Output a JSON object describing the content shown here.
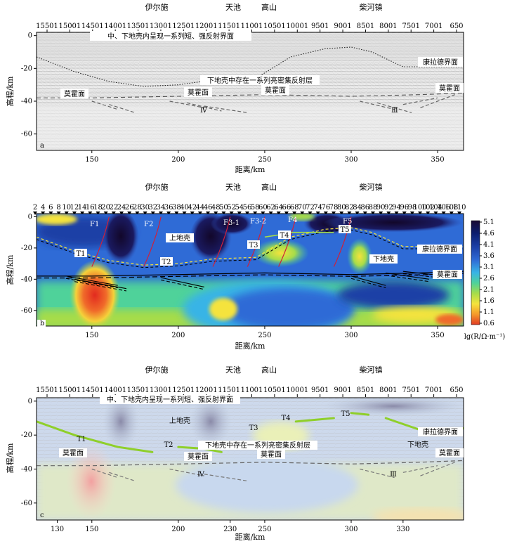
{
  "figure": {
    "places": [
      "伊尔施",
      "天池",
      "高山",
      "柴河镇"
    ],
    "x_axis_label": "距离/km",
    "y_axis_label": "高程/km",
    "colorbar_label": "lg(R/Ω·m⁻¹)",
    "colorbar_ticks": [
      "5.1",
      "4.6",
      "4.1",
      "3.6",
      "3.1",
      "2.6",
      "2.1",
      "1.6",
      "1.1",
      "0.6"
    ],
    "colorbar_colors": [
      "#1a0a33",
      "#0b1d6e",
      "#1b3fa6",
      "#2f6bd6",
      "#38b4e6",
      "#4fd29a",
      "#a6dc4a",
      "#f5e33c",
      "#f59a2a",
      "#e03a24"
    ]
  },
  "panel_a": {
    "tag": "a",
    "cdp_ticks": [
      "15501",
      "15001",
      "14501",
      "14001",
      "13501",
      "13001",
      "12501",
      "12001",
      "11501",
      "11001",
      "10501",
      "10001",
      "9501",
      "9001",
      "8501",
      "8001",
      "7501",
      "7001",
      "650"
    ],
    "x_ticks": [
      "150",
      "200",
      "250",
      "300",
      "350"
    ],
    "y_ticks": [
      "0",
      "-20",
      "-40",
      "-60"
    ],
    "annotations": {
      "top_note": "中、下地壳内呈现一系列短、强反射界面",
      "conrad": "康拉德界面",
      "lower_crust_note": "下地壳中存在一系列亮密集反射层",
      "moho_left": "莫霍面",
      "moho_mid1": "莫霍面",
      "moho_mid2": "莫霍面",
      "moho_right": "莫霍面",
      "roman_iv": "Ⅳ",
      "roman_iii": "Ⅲ"
    }
  },
  "panel_b": {
    "tag": "b",
    "station_ticks": [
      "2",
      "4",
      "6",
      "8",
      "10",
      "12",
      "14",
      "16",
      "18",
      "20",
      "22",
      "24",
      "26",
      "28",
      "30",
      "32",
      "34",
      "36",
      "38",
      "40",
      "42",
      "44",
      "46",
      "48",
      "50",
      "52",
      "54",
      "56",
      "58",
      "60",
      "62",
      "64",
      "66",
      "68",
      "70",
      "72",
      "74",
      "76",
      "78",
      "80",
      "82",
      "84",
      "86",
      "88",
      "90",
      "92",
      "94",
      "96",
      "98",
      "100",
      "102",
      "104",
      "106",
      "108",
      "110"
    ],
    "x_ticks": [
      "150",
      "200",
      "250",
      "300",
      "350"
    ],
    "y_ticks": [
      "0",
      "-20",
      "-40",
      "-60"
    ],
    "faults": [
      "F1",
      "F2",
      "F3-1",
      "F3-2",
      "F4",
      "F5"
    ],
    "reflectors": [
      "T1",
      "T2",
      "T3",
      "T4",
      "T5"
    ],
    "annotations": {
      "upper_crust": "上地壳",
      "lower_crust": "下地壳",
      "conrad": "康拉德界面",
      "moho": "莫霍面"
    }
  },
  "panel_c": {
    "tag": "c",
    "cdp_ticks": [
      "15501",
      "15001",
      "14501",
      "14001",
      "13501",
      "13001",
      "12501",
      "12001",
      "11501",
      "11001",
      "10501",
      "10001",
      "9501",
      "9001",
      "8501",
      "8001",
      "7501",
      "7001",
      "650"
    ],
    "x_ticks": [
      "130",
      "150",
      "200",
      "230",
      "250",
      "300",
      "330"
    ],
    "y_ticks": [
      "0",
      "-20",
      "-40",
      "-60"
    ],
    "annotations": {
      "top_note": "中、下地壳内呈现一系列短、强反射界面",
      "upper_crust": "上地壳",
      "lower_crust": "下地壳",
      "conrad": "康拉德界面",
      "lower_crust_note": "下地壳中存在一系列亮密集反射层",
      "moho_left": "莫霍面",
      "moho_mid1": "莫霍面",
      "moho_mid2": "莫霍面",
      "moho_right": "莫霍面",
      "roman_iv": "Ⅳ",
      "roman_iii": "Ⅲ",
      "t1": "T1",
      "t2": "T2",
      "t3": "T3",
      "t4": "T4",
      "t5": "T5"
    }
  },
  "chart_data": [
    {
      "type": "line",
      "panel": "a",
      "xlabel": "距离/km",
      "ylabel": "高程/km",
      "xlim": [
        118,
        365
      ],
      "ylim": [
        -70,
        2
      ],
      "series": [
        {
          "name": "康拉德界面",
          "x": [
            118,
            140,
            160,
            180,
            200,
            220,
            245,
            265,
            285,
            300,
            312,
            330,
            350,
            365
          ],
          "y": [
            -13,
            -22,
            -28,
            -31,
            -30,
            -27,
            -26,
            -13,
            -8,
            -7,
            -10,
            -19,
            -19,
            -19
          ]
        },
        {
          "name": "莫霍面",
          "x": [
            118,
            150,
            200,
            250,
            300,
            340,
            365
          ],
          "y": [
            -38,
            -38,
            -37,
            -36,
            -37,
            -36,
            -35
          ]
        }
      ]
    },
    {
      "type": "heatmap",
      "panel": "b",
      "xlabel": "距离/km",
      "ylabel": "高程/km",
      "xlim": [
        118,
        365
      ],
      "ylim": [
        -70,
        2
      ],
      "zlabel": "lg(R/Ω·m⁻¹)",
      "zlim": [
        0.6,
        5.1
      ],
      "faults_x": {
        "F1": 160,
        "F2": 190,
        "F3-1": 230,
        "F3-2": 250,
        "F4": 268,
        "F5": 300
      },
      "moho_depth_km": -37
    },
    {
      "type": "heatmap",
      "panel": "c",
      "xlabel": "距离/km",
      "ylabel": "高程/km",
      "xlim": [
        118,
        365
      ],
      "ylim": [
        -70,
        2
      ]
    }
  ]
}
